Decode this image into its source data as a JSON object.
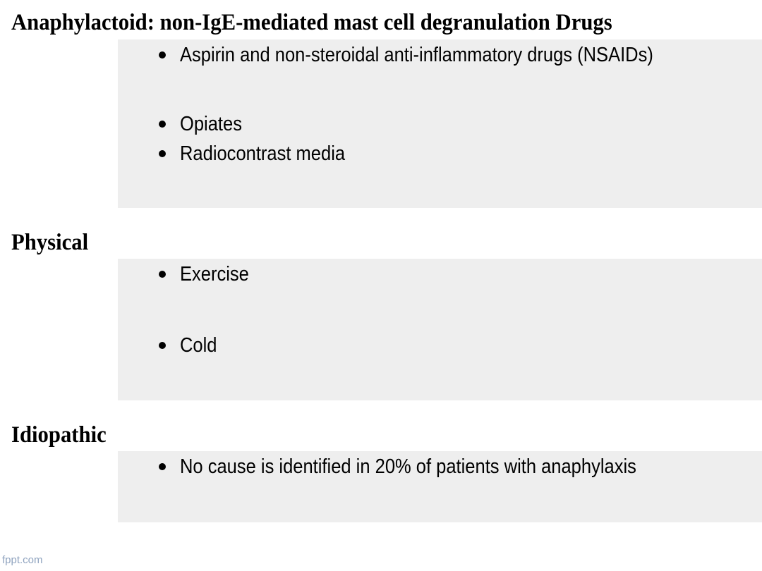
{
  "sections": [
    {
      "heading": "Anaphylactoid: non-IgE-mediated mast cell degranulation Drugs",
      "items": [
        "Aspirin and non-steroidal anti-inflammatory drugs (NSAIDs)",
        "Opiates",
        "Radiocontrast media"
      ]
    },
    {
      "heading": "Physical",
      "items": [
        "Exercise",
        "Cold"
      ]
    },
    {
      "heading": "Idiopathic",
      "items": [
        "No cause is identified in 20% of patients with anaphylaxis"
      ]
    }
  ],
  "footer": {
    "watermark": "fppt.com"
  }
}
